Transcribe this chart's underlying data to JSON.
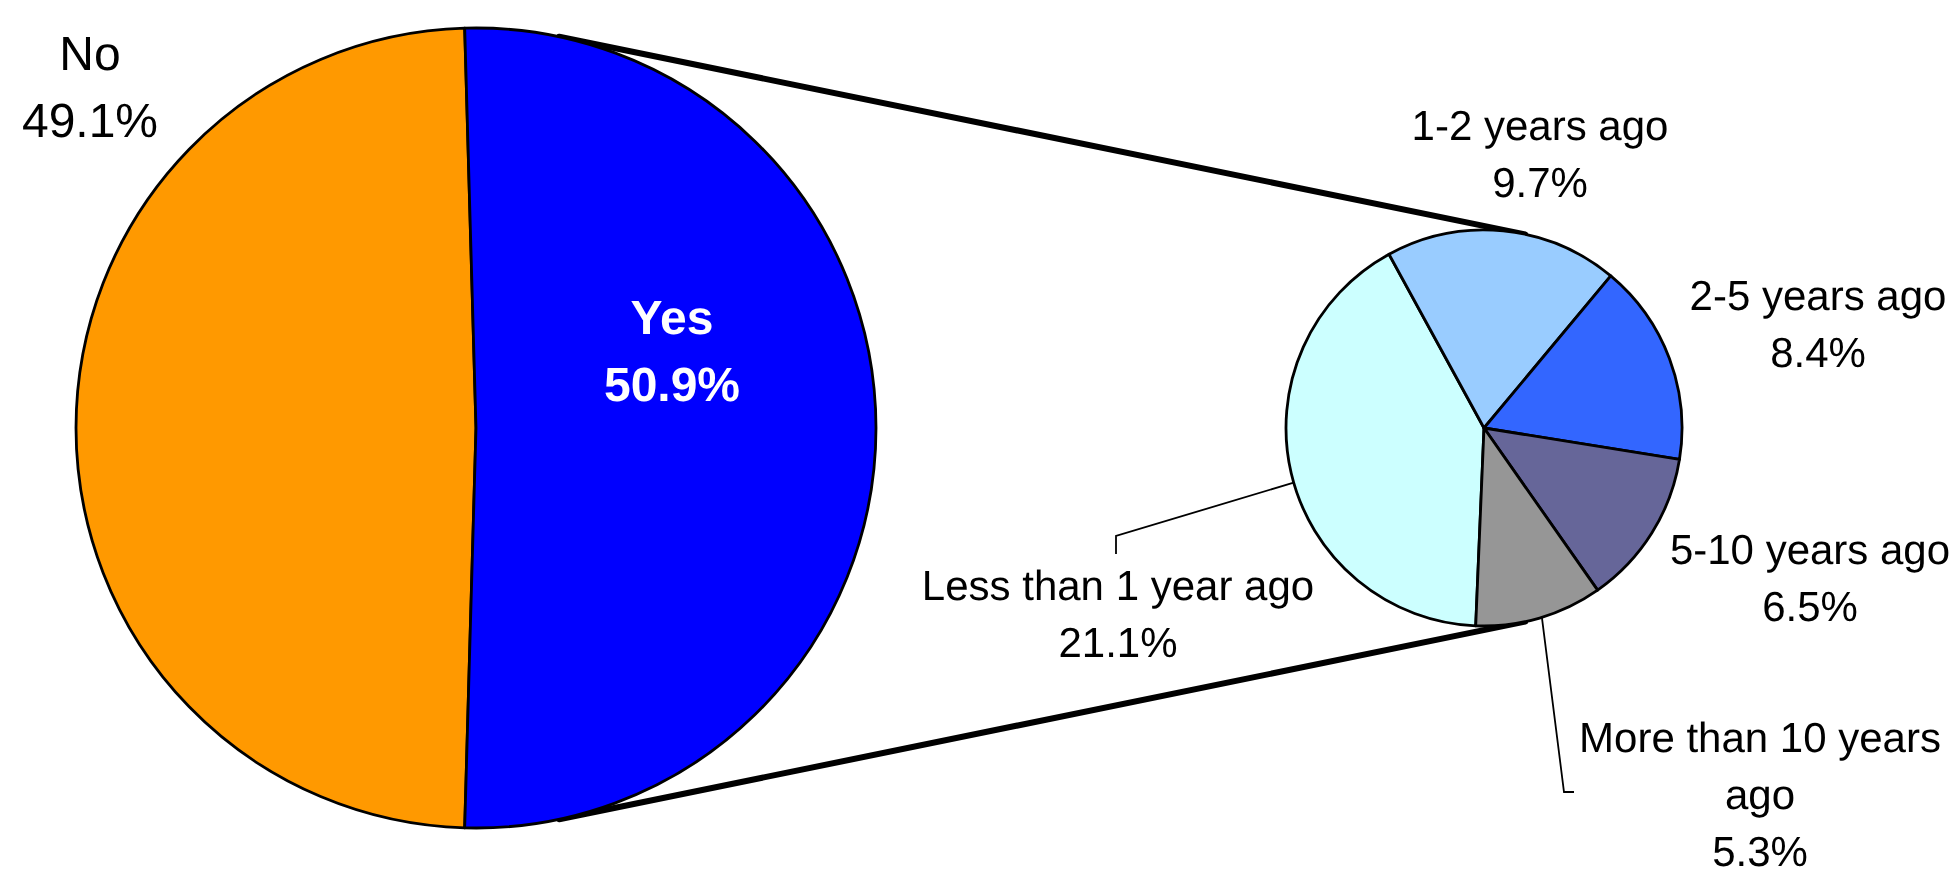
{
  "chart_data": [
    {
      "type": "pie",
      "categories": [
        "No",
        "Yes"
      ],
      "values": [
        49.1,
        50.9
      ],
      "colors": [
        "#ff9900",
        "#0000ff"
      ],
      "value_labels": [
        "49.1%",
        "50.9%"
      ]
    },
    {
      "type": "pie",
      "categories": [
        "Less than 1 year ago",
        "1-2 years ago",
        "2-5 years ago",
        "5-10 years ago",
        "More than 10 years ago"
      ],
      "values": [
        21.1,
        9.7,
        8.4,
        6.5,
        5.3
      ],
      "colors": [
        "#ccffff",
        "#99ccff",
        "#3366ff",
        "#666699",
        "#969696"
      ],
      "value_labels": [
        "21.1%",
        "9.7%",
        "8.4%",
        "6.5%",
        "5.3%"
      ]
    }
  ]
}
